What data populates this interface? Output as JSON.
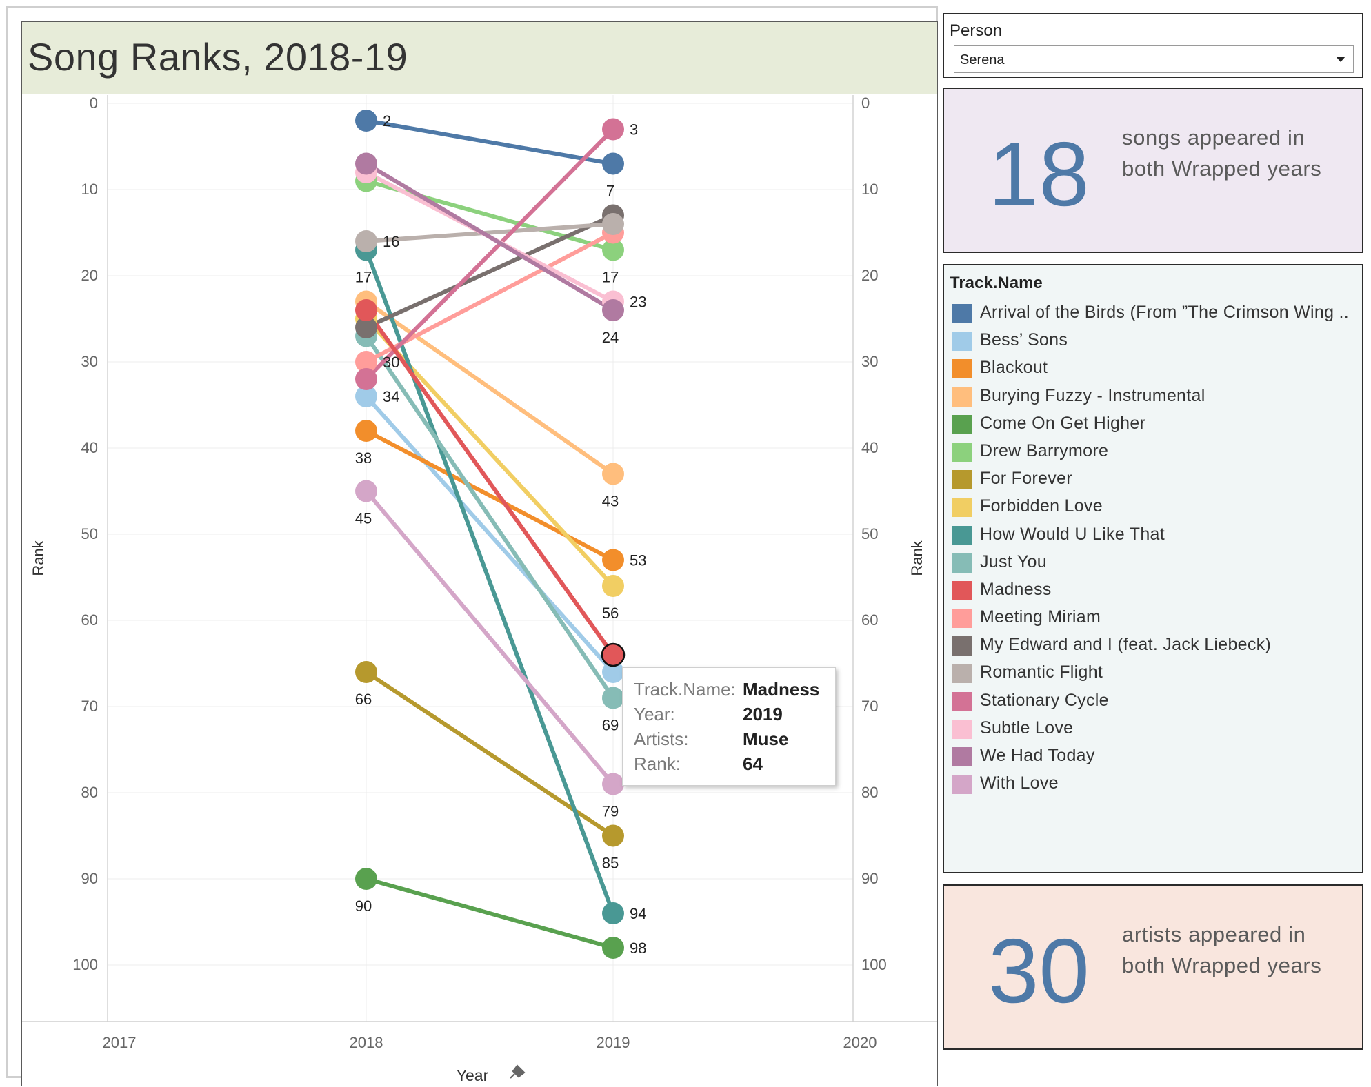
{
  "dashboard": {
    "title": "Song Ranks, 2018-19"
  },
  "filter": {
    "label": "Person",
    "value": "Serena"
  },
  "kpi_songs": {
    "number": "18",
    "text_line1": "songs appeared in",
    "text_line2": "both Wrapped years"
  },
  "kpi_artists": {
    "number": "30",
    "text_line1": "artists appeared in",
    "text_line2": "both Wrapped years"
  },
  "legend": {
    "title": "Track.Name",
    "items": [
      {
        "label": "Arrival of the Birds (From ”The Crimson Wing ..",
        "color": "#4e79a7"
      },
      {
        "label": "Bess’ Sons",
        "color": "#a0cbe8"
      },
      {
        "label": "Blackout",
        "color": "#f28e2b"
      },
      {
        "label": "Burying Fuzzy - Instrumental",
        "color": "#ffbe7d"
      },
      {
        "label": "Come On Get Higher",
        "color": "#59a14f"
      },
      {
        "label": "Drew Barrymore",
        "color": "#8cd17d"
      },
      {
        "label": "For Forever",
        "color": "#b6992d"
      },
      {
        "label": "Forbidden Love",
        "color": "#f1ce63"
      },
      {
        "label": "How Would U Like That",
        "color": "#499894"
      },
      {
        "label": "Just You",
        "color": "#86bcb6"
      },
      {
        "label": "Madness",
        "color": "#e15759"
      },
      {
        "label": "Meeting Miriam",
        "color": "#ff9d9a"
      },
      {
        "label": "My Edward and I (feat. Jack Liebeck)",
        "color": "#79706e"
      },
      {
        "label": "Romantic Flight",
        "color": "#bab0ac"
      },
      {
        "label": "Stationary Cycle",
        "color": "#d37295"
      },
      {
        "label": "Subtle Love",
        "color": "#fabfd2"
      },
      {
        "label": "We Had Today",
        "color": "#b07aa1"
      },
      {
        "label": "With Love",
        "color": "#d4a6c8"
      }
    ]
  },
  "tooltip": {
    "rows": [
      {
        "key": "Track.Name:",
        "value": "Madness"
      },
      {
        "key": "Year:",
        "value": "2019"
      },
      {
        "key": "Artists:",
        "value": "Muse"
      },
      {
        "key": "Rank:",
        "value": "64"
      }
    ]
  },
  "chart_data": {
    "type": "line",
    "title": "Song Ranks, 2018-19",
    "xlabel": "Year",
    "ylabel": "Rank",
    "x_ticks": [
      "2017",
      "2018",
      "2019",
      "2020"
    ],
    "xlim": [
      2017,
      2020
    ],
    "y_ticks": [
      0,
      10,
      20,
      30,
      40,
      50,
      60,
      70,
      80,
      90,
      100
    ],
    "ylim": [
      0,
      103
    ],
    "y_reversed": true,
    "grid": true,
    "highlighted": "Madness",
    "series": [
      {
        "name": "Arrival of the Birds (From ”The Crimson Wing ..",
        "color": "#4e79a7",
        "values": [
          2,
          7
        ],
        "labels": [
          "2",
          "7"
        ]
      },
      {
        "name": "Bess’ Sons",
        "color": "#a0cbe8",
        "values": [
          34,
          66
        ],
        "labels": [
          "34",
          "66"
        ]
      },
      {
        "name": "Blackout",
        "color": "#f28e2b",
        "values": [
          38,
          53
        ],
        "labels": [
          "38",
          "53"
        ]
      },
      {
        "name": "Burying Fuzzy - Instrumental",
        "color": "#ffbe7d",
        "values": [
          23,
          43
        ],
        "labels": [
          "",
          "43"
        ]
      },
      {
        "name": "Come On Get Higher",
        "color": "#59a14f",
        "values": [
          90,
          98
        ],
        "labels": [
          "90",
          "98"
        ]
      },
      {
        "name": "Drew Barrymore",
        "color": "#8cd17d",
        "values": [
          9,
          17
        ],
        "labels": [
          "",
          "17"
        ]
      },
      {
        "name": "For Forever",
        "color": "#b6992d",
        "values": [
          66,
          85
        ],
        "labels": [
          "66",
          "85"
        ]
      },
      {
        "name": "Forbidden Love",
        "color": "#f1ce63",
        "values": [
          25,
          56
        ],
        "labels": [
          "",
          "56"
        ]
      },
      {
        "name": "How Would U Like That",
        "color": "#499894",
        "values": [
          17,
          94
        ],
        "labels": [
          "17",
          "94"
        ]
      },
      {
        "name": "Just You",
        "color": "#86bcb6",
        "values": [
          27,
          69
        ],
        "labels": [
          "",
          "69"
        ]
      },
      {
        "name": "Madness",
        "color": "#e15759",
        "values": [
          24,
          64
        ],
        "labels": [
          "",
          ""
        ]
      },
      {
        "name": "Meeting Miriam",
        "color": "#ff9d9a",
        "values": [
          30,
          15
        ],
        "labels": [
          "30",
          ""
        ]
      },
      {
        "name": "My Edward and I (feat. Jack Liebeck)",
        "color": "#79706e",
        "values": [
          26,
          13
        ],
        "labels": [
          "",
          ""
        ]
      },
      {
        "name": "Romantic Flight",
        "color": "#bab0ac",
        "values": [
          16,
          14
        ],
        "labels": [
          "16",
          ""
        ]
      },
      {
        "name": "Stationary Cycle",
        "color": "#d37295",
        "values": [
          32,
          3
        ],
        "labels": [
          "",
          "3"
        ]
      },
      {
        "name": "Subtle Love",
        "color": "#fabfd2",
        "values": [
          8,
          23
        ],
        "labels": [
          "",
          "23"
        ]
      },
      {
        "name": "We Had Today",
        "color": "#b07aa1",
        "values": [
          7,
          24
        ],
        "labels": [
          "",
          "24"
        ]
      },
      {
        "name": "With Love",
        "color": "#d4a6c8",
        "values": [
          45,
          79
        ],
        "labels": [
          "45",
          "79"
        ]
      }
    ]
  }
}
